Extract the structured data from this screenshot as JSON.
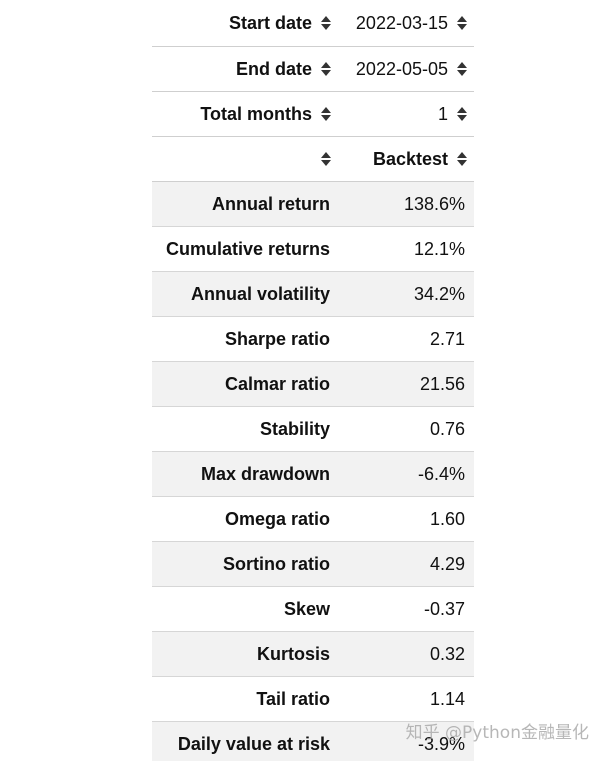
{
  "header_rows": [
    {
      "label": "Start date",
      "value": "2022-03-15"
    },
    {
      "label": "End date",
      "value": "2022-05-05"
    },
    {
      "label": "Total months",
      "value": "1"
    }
  ],
  "column_header": "Backtest",
  "rows": [
    {
      "label": "Annual return",
      "value": "138.6%"
    },
    {
      "label": "Cumulative returns",
      "value": "12.1%"
    },
    {
      "label": "Annual volatility",
      "value": "34.2%"
    },
    {
      "label": "Sharpe ratio",
      "value": "2.71"
    },
    {
      "label": "Calmar ratio",
      "value": "21.56"
    },
    {
      "label": "Stability",
      "value": "0.76"
    },
    {
      "label": "Max drawdown",
      "value": "-6.4%"
    },
    {
      "label": "Omega ratio",
      "value": "1.60"
    },
    {
      "label": "Sortino ratio",
      "value": "4.29"
    },
    {
      "label": "Skew",
      "value": "-0.37"
    },
    {
      "label": "Kurtosis",
      "value": "0.32"
    },
    {
      "label": "Tail ratio",
      "value": "1.14"
    },
    {
      "label": "Daily value at risk",
      "value": "-3.9%"
    }
  ],
  "icons": {
    "sort": "sort-icon"
  },
  "watermark": "知乎 @Python金融量化",
  "colors": {
    "stripe": "#f2f2f2",
    "border": "#d6d6d6",
    "text": "#111111"
  }
}
